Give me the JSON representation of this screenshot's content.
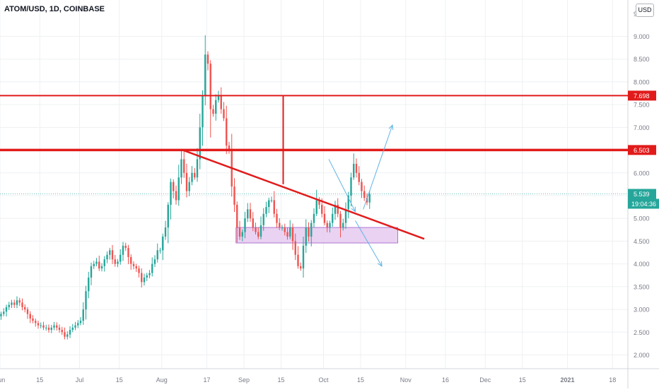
{
  "header": {
    "symbol_title": "ATOM/USD, 1D, COINBASE",
    "currency_button": "USD"
  },
  "colors": {
    "up": "#26a69a",
    "down": "#ef5350",
    "line_red": "#e11b1b",
    "arrow": "#5fb4e5",
    "zone_fill": "#e6c8f0",
    "zone_stroke": "#9c55c9",
    "grid": "#eef0f3",
    "text": "#787b86"
  },
  "chart_data": {
    "type": "candlestick",
    "title": "ATOM/USD, 1D, COINBASE",
    "ylim": [
      1.8,
      9.2
    ],
    "y_ticks": [
      "2.000",
      "2.500",
      "3.000",
      "3.500",
      "4.000",
      "4.500",
      "5.000",
      "5.500",
      "6.000",
      "6.500",
      "7.000",
      "7.500",
      "8.000",
      "8.500",
      "9.000"
    ],
    "y_tick_values": [
      2.0,
      2.5,
      3.0,
      3.5,
      4.0,
      4.5,
      5.0,
      5.5,
      6.0,
      6.5,
      7.0,
      7.5,
      8.0,
      8.5,
      9.0
    ],
    "top_partial_tick": "9.500",
    "x_ticks": [
      {
        "label": "Jun",
        "day": 0
      },
      {
        "label": "15",
        "day": 15
      },
      {
        "label": "Jul",
        "day": 30
      },
      {
        "label": "15",
        "day": 45
      },
      {
        "label": "Aug",
        "day": 61
      },
      {
        "label": "17",
        "day": 78
      },
      {
        "label": "Sep",
        "day": 92
      },
      {
        "label": "15",
        "day": 106
      },
      {
        "label": "Oct",
        "day": 122
      },
      {
        "label": "15",
        "day": 136
      },
      {
        "label": "Nov",
        "day": 153
      },
      {
        "label": "16",
        "day": 168
      },
      {
        "label": "Dec",
        "day": 183
      },
      {
        "label": "15",
        "day": 197
      },
      {
        "label": "2021",
        "day": 214
      },
      {
        "label": "18",
        "day": 231
      }
    ],
    "x_start_day": 0,
    "x_end_day": 245,
    "closes": [
      2.9,
      2.95,
      3.05,
      3.1,
      3.15,
      3.1,
      3.2,
      3.15,
      3.05,
      3.0,
      2.9,
      2.8,
      2.75,
      2.7,
      2.65,
      2.65,
      2.6,
      2.6,
      2.55,
      2.6,
      2.65,
      2.6,
      2.55,
      2.5,
      2.4,
      2.45,
      2.55,
      2.6,
      2.65,
      2.7,
      2.75,
      3.0,
      3.4,
      3.7,
      3.95,
      4.0,
      4.05,
      3.9,
      3.95,
      4.1,
      4.2,
      4.3,
      4.1,
      4.0,
      4.05,
      4.2,
      4.4,
      4.35,
      4.15,
      4.0,
      3.95,
      3.9,
      3.8,
      3.6,
      3.7,
      3.75,
      3.8,
      4.0,
      4.1,
      4.3,
      4.3,
      4.6,
      4.8,
      5.3,
      5.8,
      5.6,
      5.4,
      5.9,
      6.3,
      6.0,
      5.6,
      5.8,
      6.0,
      5.9,
      6.3,
      7.0,
      7.7,
      8.6,
      8.4,
      7.4,
      7.3,
      7.6,
      7.7,
      7.4,
      7.2,
      6.6,
      6.5,
      5.7,
      5.3,
      4.8,
      4.6,
      4.7,
      5.0,
      5.2,
      5.0,
      4.8,
      4.7,
      4.6,
      4.85,
      5.1,
      5.25,
      5.4,
      5.4,
      5.1,
      4.9,
      4.8,
      4.8,
      4.7,
      4.6,
      4.8,
      4.5,
      4.2,
      3.95,
      3.9,
      4.4,
      4.8,
      4.6,
      4.9,
      5.1,
      5.4,
      5.3,
      5.1,
      4.9,
      4.8,
      4.9,
      5.1,
      5.3,
      5.1,
      4.8,
      4.9,
      5.2,
      5.5,
      5.9,
      6.2,
      6.0,
      5.8,
      5.6,
      5.45,
      5.35,
      5.54
    ],
    "levels": [
      {
        "label": "7.698",
        "value": 7.698
      },
      {
        "label": "6.503",
        "value": 6.503
      }
    ],
    "current_price": {
      "label": "5.539",
      "value": 5.539
    },
    "countdown": {
      "label": "19:04:36"
    },
    "trendline": {
      "from": {
        "day": 69,
        "value": 6.5
      },
      "to": {
        "day": 160,
        "value": 4.55
      }
    },
    "measure_line": {
      "day": 106,
      "from": 7.698,
      "to": 5.75
    },
    "support_zone": {
      "from_day": 89,
      "to_day": 150,
      "low": 4.46,
      "high": 4.8
    },
    "arrows": [
      {
        "from": {
          "day": 124,
          "value": 6.3
        },
        "to": {
          "day": 134,
          "value": 5.15
        }
      },
      {
        "from": {
          "day": 137,
          "value": 5.2
        },
        "to": {
          "day": 148,
          "value": 7.05
        }
      },
      {
        "from": {
          "day": 134,
          "value": 4.95
        },
        "to": {
          "day": 144,
          "value": 3.95
        }
      }
    ]
  }
}
